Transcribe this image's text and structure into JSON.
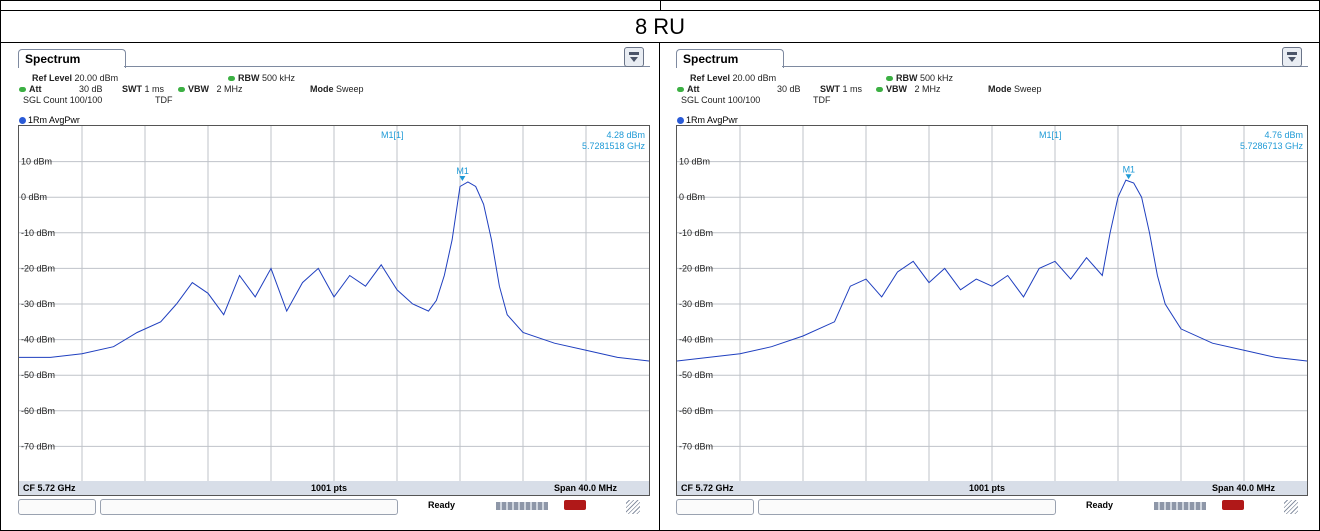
{
  "header": {
    "title": "8 RU"
  },
  "ui": {
    "spectrum_tab": "Spectrum"
  },
  "panels": [
    {
      "settings": {
        "ref_level_label": "Ref Level",
        "ref_level_value": "20.00 dBm",
        "att_label": "Att",
        "att_value": "30 dB",
        "swt_label": "SWT",
        "swt_value": "1 ms",
        "rbw_label": "RBW",
        "rbw_value": "500 kHz",
        "vbw_label": "VBW",
        "vbw_value": "2 MHz",
        "mode_label": "Mode",
        "mode_value": "Sweep",
        "sgl_count": "SGL Count 100/100",
        "tdf": "TDF"
      },
      "trace_label": "1Rm AvgPwr",
      "marker": {
        "name": "M1[1]",
        "level": "4.28 dBm",
        "freq": "5.7281518 GHz",
        "label": "M1"
      },
      "footer": {
        "cf": "CF 5.72 GHz",
        "pts": "1001 pts",
        "span": "Span 40.0 MHz"
      },
      "status": "Ready"
    },
    {
      "settings": {
        "ref_level_label": "Ref Level",
        "ref_level_value": "20.00 dBm",
        "att_label": "Att",
        "att_value": "30 dB",
        "swt_label": "SWT",
        "swt_value": "1 ms",
        "rbw_label": "RBW",
        "rbw_value": "500 kHz",
        "vbw_label": "VBW",
        "vbw_value": "2 MHz",
        "mode_label": "Mode",
        "mode_value": "Sweep",
        "sgl_count": "SGL Count 100/100",
        "tdf": "TDF"
      },
      "trace_label": "1Rm AvgPwr",
      "marker": {
        "name": "M1[1]",
        "level": "4.76 dBm",
        "freq": "5.7286713 GHz",
        "label": "M1"
      },
      "footer": {
        "cf": "CF 5.72 GHz",
        "pts": "1001 pts",
        "span": "Span 40.0 MHz"
      },
      "status": "Ready"
    }
  ],
  "chart_data": [
    {
      "type": "line",
      "x_units": "GHz",
      "y_units": "dBm",
      "xlim": [
        5.7,
        5.74
      ],
      "ylim": [
        -80,
        20
      ],
      "y_tick_labels": [
        "10 dBm",
        "0 dBm",
        "-10 dBm",
        "-20 dBm",
        "-30 dBm",
        "-40 dBm",
        "-50 dBm",
        "-60 dBm",
        "-70 dBm"
      ],
      "y_ticks": [
        10,
        0,
        -10,
        -20,
        -30,
        -40,
        -50,
        -60,
        -70
      ],
      "grid": true,
      "color": "#1f3fbf",
      "marker_x": 5.7281518,
      "marker_y": 4.28,
      "x": [
        5.7,
        5.702,
        5.704,
        5.706,
        5.7075,
        5.709,
        5.71,
        5.711,
        5.712,
        5.713,
        5.714,
        5.715,
        5.716,
        5.717,
        5.718,
        5.719,
        5.72,
        5.721,
        5.722,
        5.723,
        5.724,
        5.725,
        5.726,
        5.7265,
        5.727,
        5.7275,
        5.728,
        5.7285,
        5.729,
        5.7295,
        5.73,
        5.7305,
        5.731,
        5.732,
        5.734,
        5.736,
        5.738,
        5.74
      ],
      "y": [
        -45,
        -45,
        -44,
        -42,
        -38,
        -35,
        -30,
        -24,
        -27,
        -33,
        -22,
        -28,
        -20,
        -32,
        -24,
        -20,
        -28,
        -22,
        -25,
        -19,
        -26,
        -30,
        -32,
        -29,
        -22,
        -12,
        3,
        4.3,
        3,
        -2,
        -12,
        -25,
        -33,
        -38,
        -41,
        -43,
        -45,
        -46
      ]
    },
    {
      "type": "line",
      "x_units": "GHz",
      "y_units": "dBm",
      "xlim": [
        5.7,
        5.74
      ],
      "ylim": [
        -80,
        20
      ],
      "y_tick_labels": [
        "10 dBm",
        "0 dBm",
        "-10 dBm",
        "-20 dBm",
        "-30 dBm",
        "-40 dBm",
        "-50 dBm",
        "-60 dBm",
        "-70 dBm"
      ],
      "y_ticks": [
        10,
        0,
        -10,
        -20,
        -30,
        -40,
        -50,
        -60,
        -70
      ],
      "grid": true,
      "color": "#1f3fbf",
      "marker_x": 5.7286713,
      "marker_y": 4.76,
      "x": [
        5.7,
        5.702,
        5.704,
        5.706,
        5.708,
        5.71,
        5.711,
        5.712,
        5.713,
        5.714,
        5.715,
        5.716,
        5.717,
        5.718,
        5.719,
        5.72,
        5.721,
        5.722,
        5.723,
        5.724,
        5.725,
        5.726,
        5.727,
        5.7275,
        5.728,
        5.7285,
        5.729,
        5.7295,
        5.73,
        5.7305,
        5.731,
        5.732,
        5.734,
        5.736,
        5.738,
        5.74
      ],
      "y": [
        -46,
        -45,
        -44,
        -42,
        -39,
        -35,
        -25,
        -23,
        -28,
        -21,
        -18,
        -24,
        -20,
        -26,
        -23,
        -25,
        -22,
        -28,
        -20,
        -18,
        -23,
        -17,
        -22,
        -10,
        0,
        4.8,
        4,
        0,
        -10,
        -22,
        -30,
        -37,
        -41,
        -43,
        -45,
        -46
      ]
    }
  ]
}
